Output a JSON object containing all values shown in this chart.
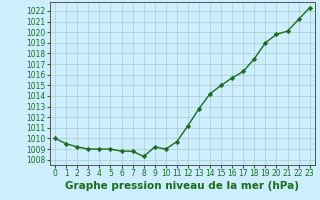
{
  "x": [
    0,
    1,
    2,
    3,
    4,
    5,
    6,
    7,
    8,
    9,
    10,
    11,
    12,
    13,
    14,
    15,
    16,
    17,
    18,
    19,
    20,
    21,
    22,
    23
  ],
  "y": [
    1010,
    1009.5,
    1009.2,
    1009.0,
    1009.0,
    1009.0,
    1008.8,
    1008.8,
    1008.3,
    1009.2,
    1009.0,
    1009.7,
    1011.2,
    1012.8,
    1014.2,
    1015.0,
    1015.7,
    1016.3,
    1017.5,
    1019.0,
    1019.8,
    1020.1,
    1021.2,
    1022.3
  ],
  "line_color": "#1a6e1a",
  "marker": "D",
  "marker_size": 2.2,
  "background_color": "#cceeff",
  "grid_color": "#aacccc",
  "xlabel": "Graphe pression niveau de la mer (hPa)",
  "xlabel_fontsize": 7.5,
  "ylim": [
    1007.5,
    1022.8
  ],
  "xlim": [
    -0.5,
    23.5
  ],
  "yticks": [
    1008,
    1009,
    1010,
    1011,
    1012,
    1013,
    1014,
    1015,
    1016,
    1017,
    1018,
    1019,
    1020,
    1021,
    1022
  ],
  "xticks": [
    0,
    1,
    2,
    3,
    4,
    5,
    6,
    7,
    8,
    9,
    10,
    11,
    12,
    13,
    14,
    15,
    16,
    17,
    18,
    19,
    20,
    21,
    22,
    23
  ],
  "tick_fontsize": 5.5,
  "line_width": 1.0
}
